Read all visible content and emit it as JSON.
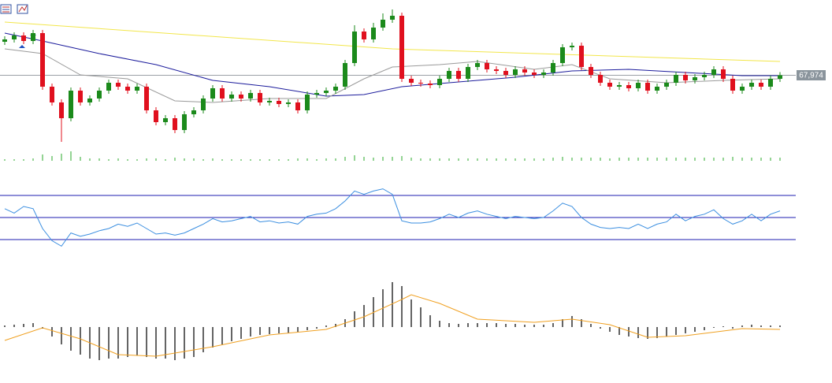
{
  "chart_data": [
    {
      "type": "candlestick",
      "up_color": "#1b8a1b",
      "down_color": "#e0101e",
      "open": [
        70100,
        70250,
        70500,
        70150,
        70650,
        67250,
        66250,
        65250,
        67000,
        66250,
        66500,
        67000,
        67500,
        67250,
        67000,
        67250,
        65750,
        65000,
        65250,
        64500,
        65500,
        65750,
        66500,
        67150,
        66500,
        66750,
        66500,
        66850,
        66250,
        66350,
        66150,
        66250,
        65750,
        66750,
        66850,
        67000,
        67250,
        68750,
        70750,
        70250,
        71000,
        71500,
        71750,
        67750,
        67500,
        67450,
        67350,
        67750,
        68250,
        67750,
        68500,
        68750,
        68350,
        68250,
        68000,
        68350,
        68150,
        68000,
        68150,
        68750,
        69750,
        69850,
        68500,
        68000,
        67500,
        67250,
        67350,
        67150,
        67500,
        67000,
        67250,
        67500,
        68000,
        67650,
        67850,
        68000,
        68350,
        67750,
        67000,
        67250,
        67500,
        67250,
        67750
      ],
      "high": [
        70450,
        70700,
        70700,
        70850,
        70850,
        67450,
        66450,
        67200,
        67200,
        66700,
        67200,
        67700,
        67700,
        67450,
        67450,
        67450,
        65950,
        65450,
        65450,
        65700,
        65950,
        66700,
        67350,
        67350,
        66950,
        66950,
        67050,
        67050,
        66550,
        66550,
        66450,
        66450,
        66950,
        67050,
        67200,
        67450,
        68950,
        71150,
        70950,
        71300,
        71900,
        72150,
        71950,
        67950,
        67700,
        67650,
        67950,
        68450,
        68450,
        68700,
        68950,
        68950,
        68550,
        68450,
        68550,
        68550,
        68350,
        68350,
        68950,
        69950,
        70050,
        70050,
        68700,
        68200,
        67700,
        67550,
        67550,
        67700,
        67700,
        67450,
        67700,
        68200,
        68200,
        68050,
        68200,
        68550,
        68550,
        67950,
        67450,
        67700,
        67700,
        67950,
        68174
      ],
      "low": [
        69900,
        70050,
        69950,
        69950,
        67050,
        66050,
        63750,
        65050,
        66050,
        66050,
        66300,
        66800,
        67050,
        66800,
        66800,
        65550,
        64800,
        64800,
        64300,
        64300,
        65300,
        65550,
        66300,
        66300,
        66300,
        66300,
        66300,
        66050,
        66050,
        65950,
        65950,
        65550,
        65550,
        66550,
        66650,
        66800,
        67050,
        68550,
        70050,
        70050,
        70800,
        71300,
        67550,
        67300,
        67250,
        67150,
        67150,
        67550,
        67550,
        67550,
        68300,
        68150,
        68050,
        67800,
        67800,
        67950,
        67800,
        67800,
        67950,
        68550,
        69550,
        68300,
        67800,
        67300,
        67050,
        67050,
        66950,
        66950,
        66800,
        66800,
        67050,
        67300,
        67450,
        67450,
        67650,
        67800,
        67550,
        66800,
        66800,
        67050,
        67050,
        67050,
        67550
      ],
      "close": [
        70250,
        70500,
        70150,
        70650,
        67250,
        66250,
        65250,
        67000,
        66250,
        66500,
        67000,
        67500,
        67250,
        67000,
        67250,
        65750,
        65000,
        65250,
        64500,
        65500,
        65750,
        66500,
        67150,
        66500,
        66750,
        66500,
        66850,
        66250,
        66350,
        66150,
        66250,
        65750,
        66750,
        66850,
        67000,
        67250,
        68750,
        70750,
        70250,
        71000,
        71500,
        71750,
        67750,
        67500,
        67450,
        67350,
        67750,
        68250,
        67750,
        68500,
        68750,
        68350,
        68250,
        68000,
        68350,
        68150,
        68000,
        68150,
        68750,
        69750,
        69850,
        68500,
        68000,
        67500,
        67250,
        67350,
        67150,
        67500,
        67000,
        67250,
        67500,
        68000,
        67650,
        67850,
        68000,
        68350,
        67750,
        67000,
        67250,
        67500,
        67250,
        67750,
        67974
      ],
      "overlays": [
        {
          "color": "#f2e64a",
          "x": [
            0,
            41,
            82
          ],
          "values": [
            71350,
            69650,
            68850
          ]
        },
        {
          "color": "#1c1c9c",
          "x": [
            0,
            4,
            10,
            16,
            22,
            28,
            34,
            38,
            42,
            48,
            54,
            60,
            66,
            72,
            78,
            82
          ],
          "values": [
            70650,
            70150,
            69350,
            68650,
            67650,
            67250,
            66650,
            66750,
            67250,
            67550,
            67850,
            68250,
            68350,
            68150,
            67950,
            67950
          ]
        },
        {
          "color": "#9a9a9a",
          "x": [
            0,
            4,
            8,
            13,
            18,
            22,
            28,
            34,
            38,
            41,
            46,
            50,
            56,
            60,
            64,
            70,
            76,
            82
          ],
          "values": [
            69650,
            69350,
            68000,
            67750,
            66350,
            66250,
            66500,
            66500,
            67750,
            68500,
            68650,
            68850,
            68350,
            68650,
            67750,
            67500,
            67650,
            67750
          ]
        }
      ],
      "last_price": {
        "value": 67974,
        "label": "67,974"
      },
      "ylim": [
        62750,
        72750
      ]
    },
    {
      "type": "bar",
      "color": "#2aa82a",
      "values": [
        2,
        2,
        2,
        3,
        8,
        6,
        9,
        12,
        5,
        3,
        3,
        2,
        3,
        2,
        2,
        3,
        3,
        2,
        4,
        3,
        3,
        2,
        3,
        2,
        2,
        2,
        2,
        2,
        2,
        2,
        2,
        3,
        3,
        2,
        3,
        3,
        5,
        7,
        5,
        4,
        5,
        5,
        6,
        4,
        3,
        3,
        3,
        3,
        3,
        3,
        3,
        3,
        3,
        3,
        3,
        3,
        3,
        3,
        4,
        5,
        4,
        4,
        4,
        4,
        3,
        4,
        4,
        4,
        4,
        4,
        4,
        4,
        4,
        4,
        4,
        4,
        4,
        5,
        4,
        4,
        4,
        4,
        4
      ],
      "ylim": [
        0,
        25
      ]
    },
    {
      "type": "line",
      "color": "#3a8ee0",
      "level_color": "#1c1cb0",
      "values": [
        58,
        54,
        60,
        58,
        40,
        29,
        24,
        36,
        33,
        35,
        38,
        40,
        44,
        42,
        45,
        40,
        35,
        36,
        34,
        36,
        40,
        44,
        49,
        46,
        47,
        49,
        51,
        46,
        47,
        45,
        46,
        44,
        51,
        53,
        54,
        58,
        65,
        74,
        71,
        74,
        76,
        71,
        47,
        45,
        45,
        46,
        49,
        53,
        50,
        54,
        56,
        53,
        51,
        49,
        51,
        50,
        49,
        50,
        56,
        63,
        60,
        50,
        44,
        41,
        40,
        41,
        40,
        44,
        40,
        44,
        46,
        53,
        47,
        51,
        53,
        57,
        49,
        44,
        47,
        53,
        47,
        53,
        56
      ],
      "levels": [
        30,
        50,
        70
      ],
      "ylim": [
        10,
        90
      ]
    },
    {
      "type": "macd",
      "color": "#111111",
      "values": [
        2,
        3,
        4,
        5,
        -2,
        -12,
        -22,
        -30,
        -35,
        -40,
        -42,
        -40,
        -40,
        -38,
        -36,
        -38,
        -40,
        -40,
        -42,
        -40,
        -38,
        -32,
        -26,
        -22,
        -18,
        -15,
        -12,
        -10,
        -9,
        -8,
        -8,
        -7,
        -4,
        -2,
        2,
        4,
        10,
        20,
        28,
        38,
        48,
        57,
        52,
        35,
        25,
        15,
        8,
        5,
        4,
        5,
        5,
        5,
        5,
        4,
        4,
        3,
        3,
        3,
        5,
        10,
        14,
        10,
        4,
        -2,
        -6,
        -10,
        -12,
        -14,
        -15,
        -14,
        -12,
        -10,
        -8,
        -6,
        -4,
        -1,
        0,
        -2,
        2,
        3,
        2,
        2,
        2
      ],
      "signal": {
        "color": "#f0a020",
        "x": [
          0,
          4,
          8,
          12,
          16,
          22,
          28,
          34,
          38,
          42,
          43,
          46,
          50,
          56,
          60,
          64,
          68,
          72,
          78,
          82
        ],
        "values": [
          -17,
          -1,
          -15,
          -35,
          -37,
          -25,
          -10,
          -3,
          13,
          35,
          41,
          30,
          10,
          6,
          10,
          3,
          -13,
          -11,
          -2,
          -3
        ]
      },
      "ylim": [
        -65,
        75
      ]
    }
  ]
}
